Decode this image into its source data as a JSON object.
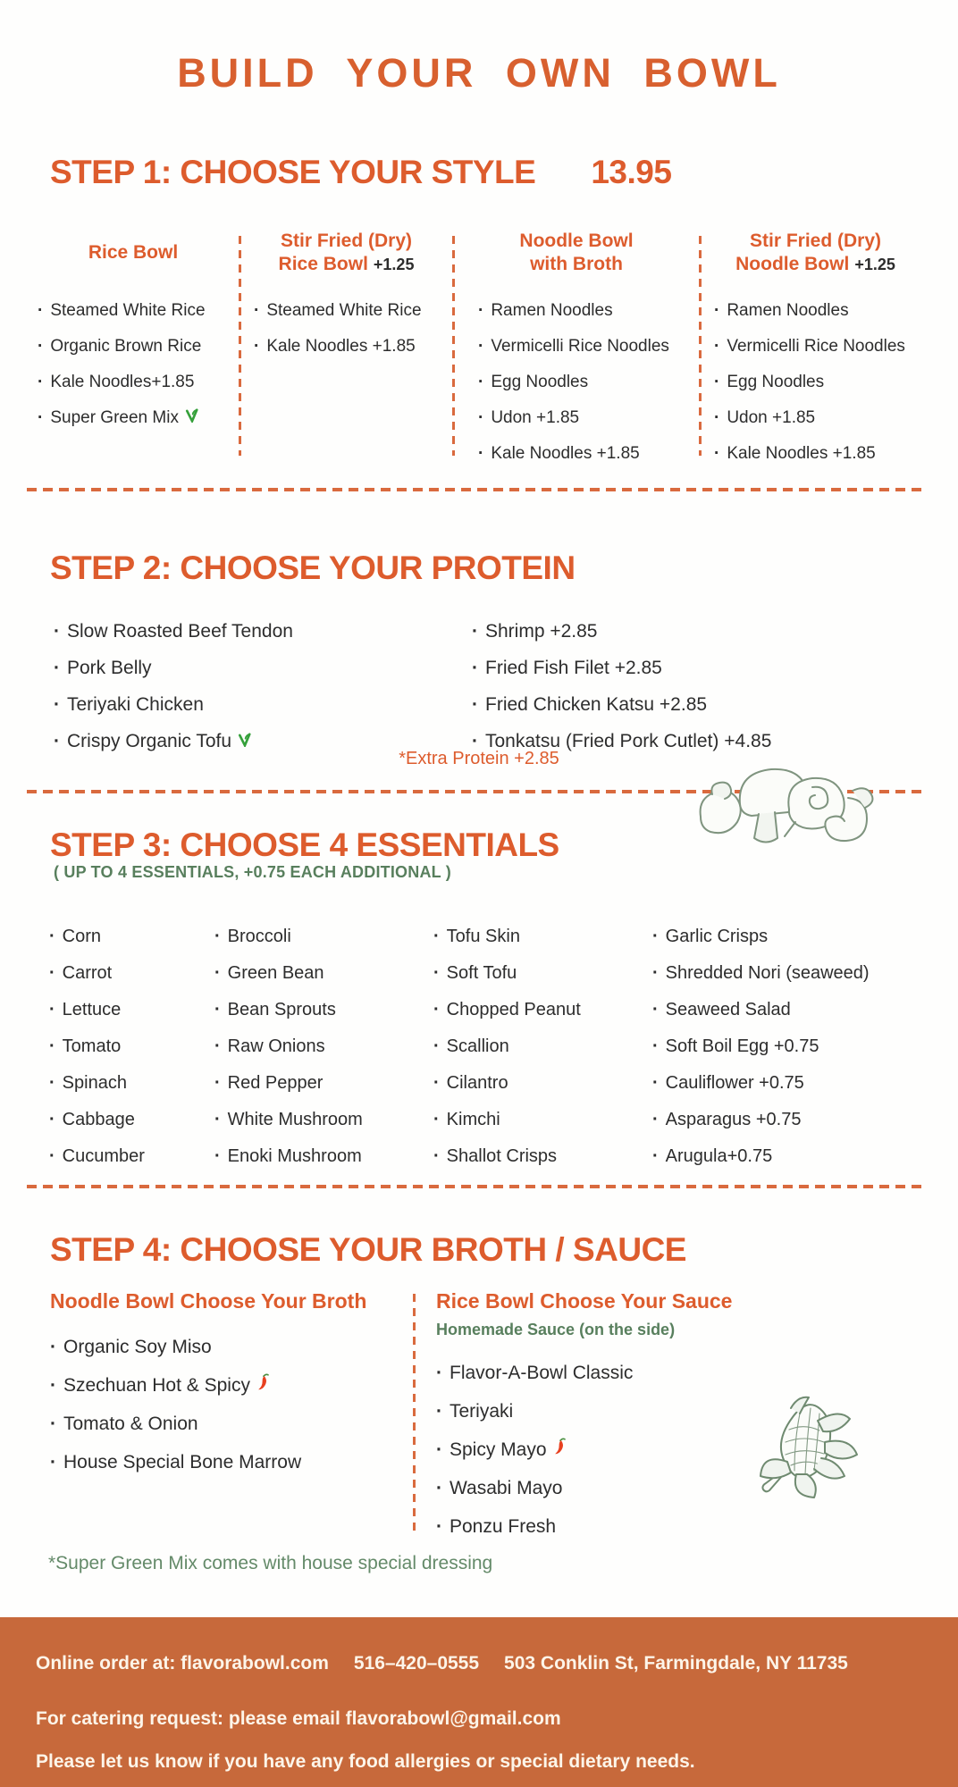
{
  "bullet": "·",
  "colors": {
    "accent_orange": "#dd5c2d",
    "divider_orange": "#d96a3e",
    "footer_bg": "#c7693b",
    "sage_green": "#587f5d",
    "veg_green": "#35a03a",
    "chili_red": "#e8401f",
    "body_text": "#2d2d2d"
  },
  "title": "BUILD YOUR OWN BOWL",
  "step1": {
    "heading": "STEP 1: CHOOSE YOUR STYLE",
    "price": "13.95",
    "columns": [
      {
        "title_line1": "Rice Bowl",
        "title_line2": "",
        "price_suffix": "",
        "items": [
          "Steamed White Rice",
          "Organic Brown Rice",
          "Kale Noodles+1.85",
          "Super Green Mix"
        ],
        "markers": {
          "veg": [
            3
          ]
        }
      },
      {
        "title_line1": "Stir Fried (Dry)",
        "title_line2": "Rice Bowl",
        "price_suffix": "+1.25",
        "items": [
          "Steamed White Rice",
          "Kale Noodles +1.85"
        ],
        "markers": {}
      },
      {
        "title_line1": "Noodle Bowl",
        "title_line2": "with Broth",
        "price_suffix": "",
        "items": [
          "Ramen Noodles",
          "Vermicelli Rice Noodles",
          "Egg Noodles",
          "Udon +1.85",
          "Kale Noodles +1.85"
        ],
        "markers": {}
      },
      {
        "title_line1": "Stir Fried (Dry)",
        "title_line2": "Noodle Bowl",
        "price_suffix": "+1.25",
        "items": [
          "Ramen Noodles",
          "Vermicelli Rice Noodles",
          "Egg Noodles",
          "Udon +1.85",
          "Kale Noodles +1.85"
        ],
        "markers": {}
      }
    ]
  },
  "step2": {
    "heading": "STEP 2: CHOOSE YOUR PROTEIN",
    "col1": {
      "items": [
        "Slow Roasted Beef Tendon",
        "Pork Belly",
        "Teriyaki Chicken",
        "Crispy Organic Tofu"
      ],
      "markers": {
        "veg": [
          3
        ]
      }
    },
    "col2": {
      "items": [
        "Shrimp +2.85",
        "Fried Fish Filet +2.85",
        "Fried Chicken Katsu +2.85",
        "Tonkatsu (Fried Pork Cutlet) +4.85"
      ],
      "markers": {}
    },
    "note": "*Extra Protein +2.85"
  },
  "step3": {
    "heading": "STEP 3: CHOOSE 4 ESSENTIALS",
    "subtitle": "( UP TO 4 ESSENTIALS, +0.75 EACH ADDITIONAL )",
    "columns": [
      {
        "items": [
          "Corn",
          "Carrot",
          "Lettuce",
          "Tomato",
          "Spinach",
          "Cabbage",
          "Cucumber"
        ],
        "markers": {}
      },
      {
        "items": [
          "Broccoli",
          "Green Bean",
          "Bean Sprouts",
          "Raw Onions",
          "Red Pepper",
          "White Mushroom",
          "Enoki Mushroom"
        ],
        "markers": {}
      },
      {
        "items": [
          "Tofu Skin",
          "Soft Tofu",
          "Chopped Peanut",
          "Scallion",
          "Cilantro",
          "Kimchi",
          "Shallot Crisps"
        ],
        "markers": {}
      },
      {
        "items": [
          "Garlic Crisps",
          "Shredded Nori (seaweed)",
          "Seaweed Salad",
          "Soft Boil Egg +0.75",
          "Cauliflower +0.75",
          "Asparagus +0.75",
          "Arugula+0.75"
        ],
        "markers": {}
      }
    ]
  },
  "step4": {
    "heading": "STEP 4: CHOOSE YOUR BROTH / SAUCE",
    "broth": {
      "title": "Noodle Bowl Choose Your Broth",
      "items": [
        "Organic Soy Miso",
        "Szechuan Hot & Spicy",
        "Tomato & Onion",
        "House Special Bone Marrow"
      ],
      "markers": {
        "chili": [
          1
        ]
      }
    },
    "sauce": {
      "title": "Rice Bowl Choose Your Sauce",
      "subtitle": "Homemade Sauce (on the side)",
      "items": [
        "Flavor-A-Bowl Classic",
        "Teriyaki",
        "Spicy Mayo",
        "Wasabi Mayo",
        "Ponzu Fresh"
      ],
      "markers": {
        "chili": [
          2
        ]
      }
    },
    "footnote": "*Super Green Mix comes with house special dressing"
  },
  "footer": {
    "online": "Online order at: flavorabowl.com",
    "phone": "516–420–0555",
    "address": "503 Conklin St, Farmingdale, NY 11735",
    "catering": "For catering request: please email flavorabowl@gmail.com",
    "allergy": "Please let us know if you have any food allergies or special dietary needs."
  }
}
